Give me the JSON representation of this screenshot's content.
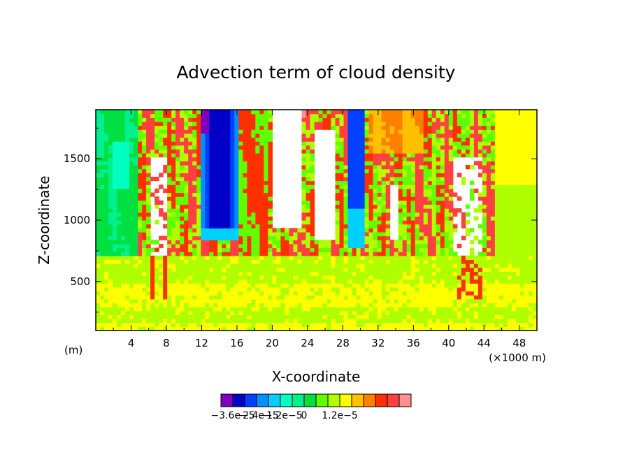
{
  "chart_data": {
    "type": "heatmap",
    "title": "Advection term of cloud density",
    "xlabel": "X-coordinate",
    "ylabel": "Z-coordinate",
    "x_unit_left": "(m)",
    "x_unit_right": "(×1000 m)",
    "xlim": [
      0,
      50
    ],
    "ylim": [
      100,
      1900
    ],
    "x_ticks": [
      "4",
      "8",
      "12",
      "16",
      "20",
      "24",
      "28",
      "32",
      "36",
      "40",
      "44",
      "48"
    ],
    "x_tick_values": [
      4,
      8,
      12,
      16,
      20,
      24,
      28,
      32,
      36,
      40,
      44,
      48
    ],
    "y_ticks": [
      "500",
      "1000",
      "1500"
    ],
    "y_tick_values": [
      500,
      1000,
      1500
    ],
    "grid": false,
    "colorbar": {
      "placement": "bottom",
      "colors": [
        "#7f00bf",
        "#0000c8",
        "#0040ff",
        "#0090ff",
        "#00d0ff",
        "#00ffc0",
        "#00f090",
        "#00e040",
        "#60ff00",
        "#b0ff00",
        "#ffff00",
        "#ffc000",
        "#ff8000",
        "#ff3000",
        "#ff4040",
        "#ff9090"
      ],
      "labels": [
        "−3.6e−5",
        "−2.4e−5",
        "−1.2e−5",
        "0",
        "1.2e−5"
      ],
      "label_positions": [
        1,
        3,
        5,
        7,
        10
      ]
    }
  }
}
